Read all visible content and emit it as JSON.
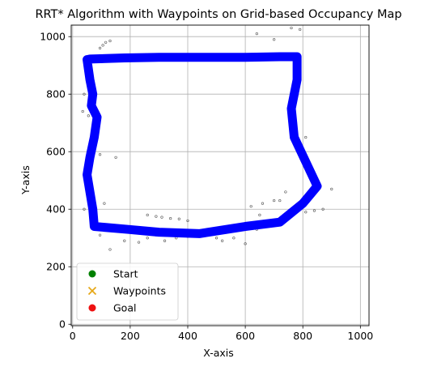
{
  "chart_data": {
    "type": "line",
    "title": "RRT* Algorithm with Waypoints on Grid-based Occupancy Map",
    "xlabel": "X-axis",
    "ylabel": "Y-axis",
    "xlim": [
      -5,
      1030
    ],
    "ylim": [
      -5,
      1040
    ],
    "xticks": [
      0,
      200,
      400,
      600,
      800,
      1000
    ],
    "yticks": [
      0,
      200,
      400,
      600,
      800,
      1000
    ],
    "grid": true,
    "legend_position": "lower-left",
    "legend": [
      {
        "label": "Start",
        "marker": "circle",
        "color": "#008000"
      },
      {
        "label": "Waypoints",
        "marker": "x",
        "color": "#e6a817"
      },
      {
        "label": "Goal",
        "marker": "circle",
        "color": "#ee1111"
      }
    ],
    "series": [
      {
        "color": "#0000ff",
        "x": [
          50,
          60,
          70,
          65,
          85,
          75,
          60,
          50,
          60,
          70,
          75,
          190,
          300,
          440,
          600,
          720,
          800,
          850,
          770,
          760,
          780,
          780,
          720,
          600,
          450,
          300,
          180,
          60,
          50
        ],
        "y": [
          920,
          850,
          800,
          760,
          720,
          650,
          580,
          520,
          460,
          400,
          340,
          330,
          320,
          315,
          340,
          355,
          420,
          480,
          650,
          750,
          850,
          930,
          930,
          928,
          928,
          928,
          926,
          922,
          920
        ]
      }
    ],
    "obstacles": {
      "color": "#555555",
      "points": [
        [
          95,
          960
        ],
        [
          105,
          970
        ],
        [
          115,
          980
        ],
        [
          130,
          985
        ],
        [
          640,
          1010
        ],
        [
          700,
          990
        ],
        [
          760,
          1030
        ],
        [
          790,
          1025
        ],
        [
          40,
          800
        ],
        [
          35,
          740
        ],
        [
          55,
          725
        ],
        [
          75,
          600
        ],
        [
          95,
          590
        ],
        [
          760,
          700
        ],
        [
          790,
          600
        ],
        [
          810,
          650
        ],
        [
          850,
          470
        ],
        [
          870,
          400
        ],
        [
          900,
          470
        ],
        [
          790,
          590
        ],
        [
          40,
          400
        ],
        [
          60,
          395
        ],
        [
          95,
          310
        ],
        [
          130,
          260
        ],
        [
          180,
          290
        ],
        [
          230,
          285
        ],
        [
          260,
          300
        ],
        [
          290,
          310
        ],
        [
          320,
          290
        ],
        [
          360,
          300
        ],
        [
          400,
          305
        ],
        [
          470,
          310
        ],
        [
          500,
          300
        ],
        [
          520,
          290
        ],
        [
          560,
          300
        ],
        [
          600,
          280
        ],
        [
          640,
          330
        ],
        [
          650,
          380
        ],
        [
          700,
          430
        ],
        [
          740,
          460
        ],
        [
          760,
          380
        ],
        [
          780,
          395
        ],
        [
          260,
          380
        ],
        [
          290,
          375
        ],
        [
          310,
          372
        ],
        [
          340,
          368
        ],
        [
          370,
          366
        ],
        [
          400,
          360
        ],
        [
          620,
          410
        ],
        [
          660,
          420
        ],
        [
          720,
          430
        ],
        [
          810,
          390
        ],
        [
          840,
          395
        ],
        [
          110,
          420
        ],
        [
          150,
          580
        ]
      ]
    }
  }
}
